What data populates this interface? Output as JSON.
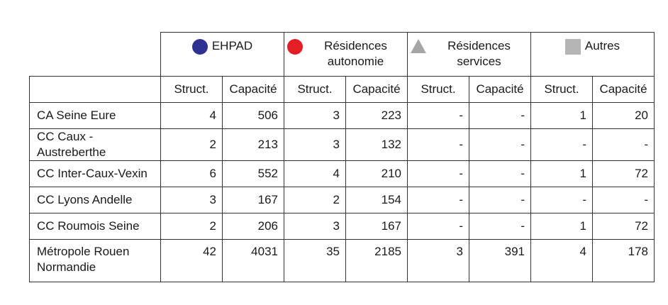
{
  "groups": [
    {
      "label": "EHPAD",
      "marker": "circle",
      "color": "#2e3192"
    },
    {
      "label": "Résidences autonomie",
      "marker": "circle",
      "color": "#e31e24"
    },
    {
      "label": "Résidences services",
      "marker": "triangle",
      "color": "#a6a6a6"
    },
    {
      "label": "Autres",
      "marker": "square",
      "color": "#b5b5b5"
    }
  ],
  "subheaders": [
    "Struct.",
    "Capacité"
  ],
  "rows": [
    {
      "label": "CA Seine Eure",
      "values": [
        "4",
        "506",
        "3",
        "223",
        "-",
        "-",
        "1",
        "20"
      ]
    },
    {
      "label": "CC Caux - Austreberthe",
      "values": [
        "2",
        "213",
        "3",
        "132",
        "-",
        "-",
        "-",
        "-"
      ]
    },
    {
      "label": "CC Inter-Caux-Vexin",
      "values": [
        "6",
        "552",
        "4",
        "210",
        "-",
        "-",
        "1",
        "72"
      ]
    },
    {
      "label": "CC Lyons Andelle",
      "values": [
        "3",
        "167",
        "2",
        "154",
        "-",
        "-",
        "-",
        "-"
      ]
    },
    {
      "label": "CC Roumois Seine",
      "values": [
        "2",
        "206",
        "3",
        "167",
        "-",
        "-",
        "1",
        "72"
      ]
    },
    {
      "label": "Métropole Rouen Normandie",
      "values": [
        "42",
        "4031",
        "35",
        "2185",
        "3",
        "391",
        "4",
        "178"
      ]
    }
  ]
}
